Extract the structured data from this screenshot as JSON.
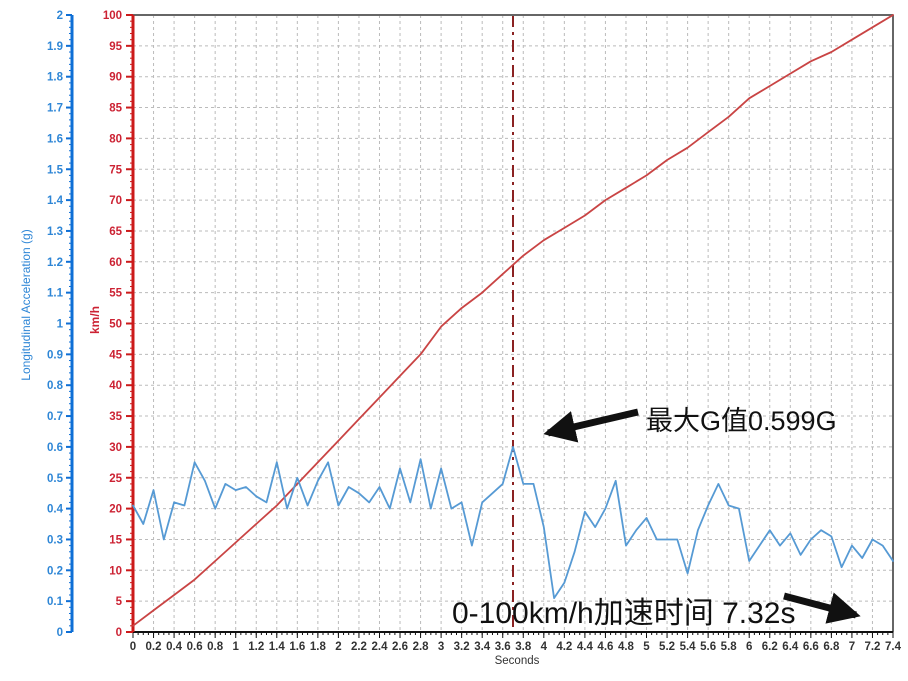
{
  "page": {
    "background": "#FFFFFF",
    "border_color": "#666666"
  },
  "chart_data": {
    "type": "line",
    "title": "",
    "xlabel": "Seconds",
    "x_range": [
      0,
      7.4
    ],
    "x_tick_step": 0.2,
    "grid": "dashed",
    "grid_color": "#BBBBBB",
    "axes": {
      "g_axis": {
        "label": "Longitudinal Acceleration (g)",
        "range": [
          0,
          2
        ],
        "tick_step": 0.1,
        "minor_step": 0.02,
        "color_line": "#0E6FD6",
        "color_text": "#2E86D6"
      },
      "speed_axis": {
        "label": "km/h",
        "range": [
          0,
          100
        ],
        "tick_step": 5,
        "minor_step": 1,
        "color_line": "#CC1A1A",
        "color_text": "#CC2233"
      },
      "x_axis": {
        "label": "Seconds",
        "minor_step": 0.05,
        "color_line": "#111111",
        "color_text": "#333333"
      }
    },
    "marker_line": {
      "x": 3.7,
      "color": "#8B2222",
      "style": "dash-dot"
    },
    "series": [
      {
        "name": "speed",
        "unit": "km/h",
        "axis": "speed_axis",
        "color": "#C94444",
        "x_start": 0,
        "x_step": 0.2,
        "values": [
          1,
          3.5,
          6,
          8.5,
          11.5,
          14.5,
          17.5,
          20.5,
          24,
          27.5,
          31,
          34.5,
          38,
          41.5,
          45,
          49.5,
          52.5,
          55,
          58,
          61,
          63.5,
          65.5,
          67.5,
          70,
          72,
          74,
          76.5,
          78.5,
          81,
          83.5,
          86.5,
          88.5,
          90.5,
          92.5,
          94,
          96,
          98,
          100
        ]
      },
      {
        "name": "longitudinal-acceleration",
        "unit": "g",
        "axis": "g_axis",
        "color": "#569AD4",
        "x_start": 0,
        "x_step": 0.1,
        "values": [
          0.41,
          0.35,
          0.46,
          0.3,
          0.42,
          0.41,
          0.55,
          0.49,
          0.4,
          0.48,
          0.46,
          0.47,
          0.44,
          0.42,
          0.55,
          0.4,
          0.5,
          0.41,
          0.49,
          0.55,
          0.41,
          0.47,
          0.45,
          0.42,
          0.47,
          0.4,
          0.53,
          0.42,
          0.56,
          0.4,
          0.53,
          0.4,
          0.42,
          0.28,
          0.42,
          0.45,
          0.48,
          0.6,
          0.48,
          0.48,
          0.34,
          0.11,
          0.16,
          0.26,
          0.39,
          0.34,
          0.4,
          0.49,
          0.28,
          0.33,
          0.37,
          0.3,
          0.3,
          0.3,
          0.19,
          0.33,
          0.41,
          0.48,
          0.41,
          0.4,
          0.23,
          0.28,
          0.33,
          0.28,
          0.32,
          0.25,
          0.3,
          0.33,
          0.31,
          0.21,
          0.28,
          0.24,
          0.3,
          0.28,
          0.23
        ]
      }
    ],
    "annotations": [
      {
        "id": "max-g",
        "text": "最大G值0.599G"
      },
      {
        "id": "accel-time",
        "text": "0-100km/h加速时间 7.32s"
      }
    ],
    "key_values": {
      "max_g": "0.599G",
      "time_0_100_kmh": "7.32s"
    },
    "annotation_color": "#111111"
  }
}
